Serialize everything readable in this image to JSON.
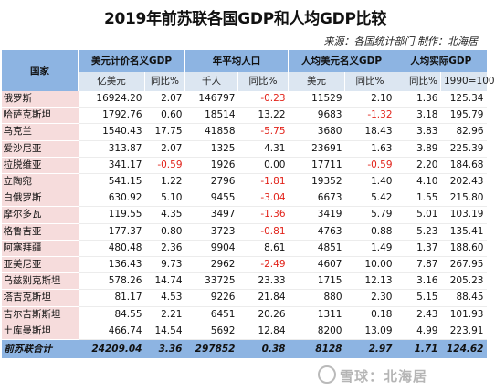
{
  "title": "2019年前苏联各国GDP和人均GDP比较",
  "source": "来源：各国统计部门  制作：北海居",
  "header": {
    "country": "国家",
    "groups": [
      "美元计价名义GDP",
      "年平均人口",
      "人均美元名义GDP",
      "人均实际GDP"
    ],
    "subs": [
      "亿美元",
      "同比%",
      "千人",
      "同比%",
      "美元",
      "同比%",
      "同比%",
      "1990=100"
    ]
  },
  "rows": [
    {
      "name": "俄罗斯",
      "v": [
        "16924.20",
        "2.07",
        "146797",
        "-0.23",
        "11529",
        "2.10",
        "1.36",
        "125.34"
      ]
    },
    {
      "name": "哈萨克斯坦",
      "v": [
        "1792.76",
        "0.60",
        "18514",
        "13.22",
        "9683",
        "-1.32",
        "3.18",
        "195.79"
      ]
    },
    {
      "name": "乌克兰",
      "v": [
        "1540.43",
        "17.75",
        "41858",
        "-5.75",
        "3680",
        "18.43",
        "3.83",
        "82.96"
      ]
    },
    {
      "name": "爱沙尼亚",
      "v": [
        "313.87",
        "2.07",
        "1325",
        "4.31",
        "23691",
        "1.63",
        "3.89",
        "225.39"
      ]
    },
    {
      "name": "拉脱维亚",
      "v": [
        "341.17",
        "-0.59",
        "1926",
        "0.00",
        "17711",
        "-0.59",
        "2.20",
        "184.68"
      ]
    },
    {
      "name": "立陶宛",
      "v": [
        "541.15",
        "1.22",
        "2796",
        "-1.81",
        "19352",
        "1.40",
        "4.10",
        "202.43"
      ]
    },
    {
      "name": "白俄罗斯",
      "v": [
        "630.92",
        "5.10",
        "9455",
        "-3.04",
        "6673",
        "5.42",
        "1.55",
        "215.80"
      ]
    },
    {
      "name": "摩尔多瓦",
      "v": [
        "119.55",
        "4.35",
        "3497",
        "-1.36",
        "3419",
        "5.79",
        "5.01",
        "103.19"
      ]
    },
    {
      "name": "格鲁吉亚",
      "v": [
        "177.37",
        "0.80",
        "3723",
        "-0.81",
        "4763",
        "0.88",
        "5.23",
        "135.41"
      ]
    },
    {
      "name": "阿塞拜疆",
      "v": [
        "480.48",
        "2.36",
        "9904",
        "8.61",
        "4851",
        "1.49",
        "1.37",
        "188.60"
      ]
    },
    {
      "name": "亚美尼亚",
      "v": [
        "136.43",
        "9.73",
        "2962",
        "-2.49",
        "4607",
        "10.00",
        "7.87",
        "267.95"
      ]
    },
    {
      "name": "乌兹别克斯坦",
      "v": [
        "578.26",
        "14.74",
        "33725",
        "23.33",
        "1715",
        "12.13",
        "3.16",
        "205.23"
      ]
    },
    {
      "name": "塔吉克斯坦",
      "v": [
        "81.17",
        "4.53",
        "9226",
        "21.84",
        "880",
        "2.30",
        "5.15",
        "88.45"
      ]
    },
    {
      "name": "吉尔吉斯斯坦",
      "v": [
        "84.55",
        "2.21",
        "6451",
        "20.26",
        "1311",
        "0.18",
        "2.43",
        "101.93"
      ]
    },
    {
      "name": "土库曼斯坦",
      "v": [
        "466.74",
        "14.54",
        "5692",
        "12.84",
        "8200",
        "13.09",
        "4.99",
        "223.91"
      ]
    }
  ],
  "total": {
    "name": "前苏联合计",
    "v": [
      "24209.04",
      "3.36",
      "297852",
      "0.38",
      "8128",
      "2.97",
      "1.71",
      "124.62"
    ]
  },
  "watermark": "雪球：北海居",
  "colors": {
    "header": "#8db4e2",
    "subheader": "#dce6f1",
    "country_bg": "#f6dcdc",
    "negative": "#e2231a"
  }
}
